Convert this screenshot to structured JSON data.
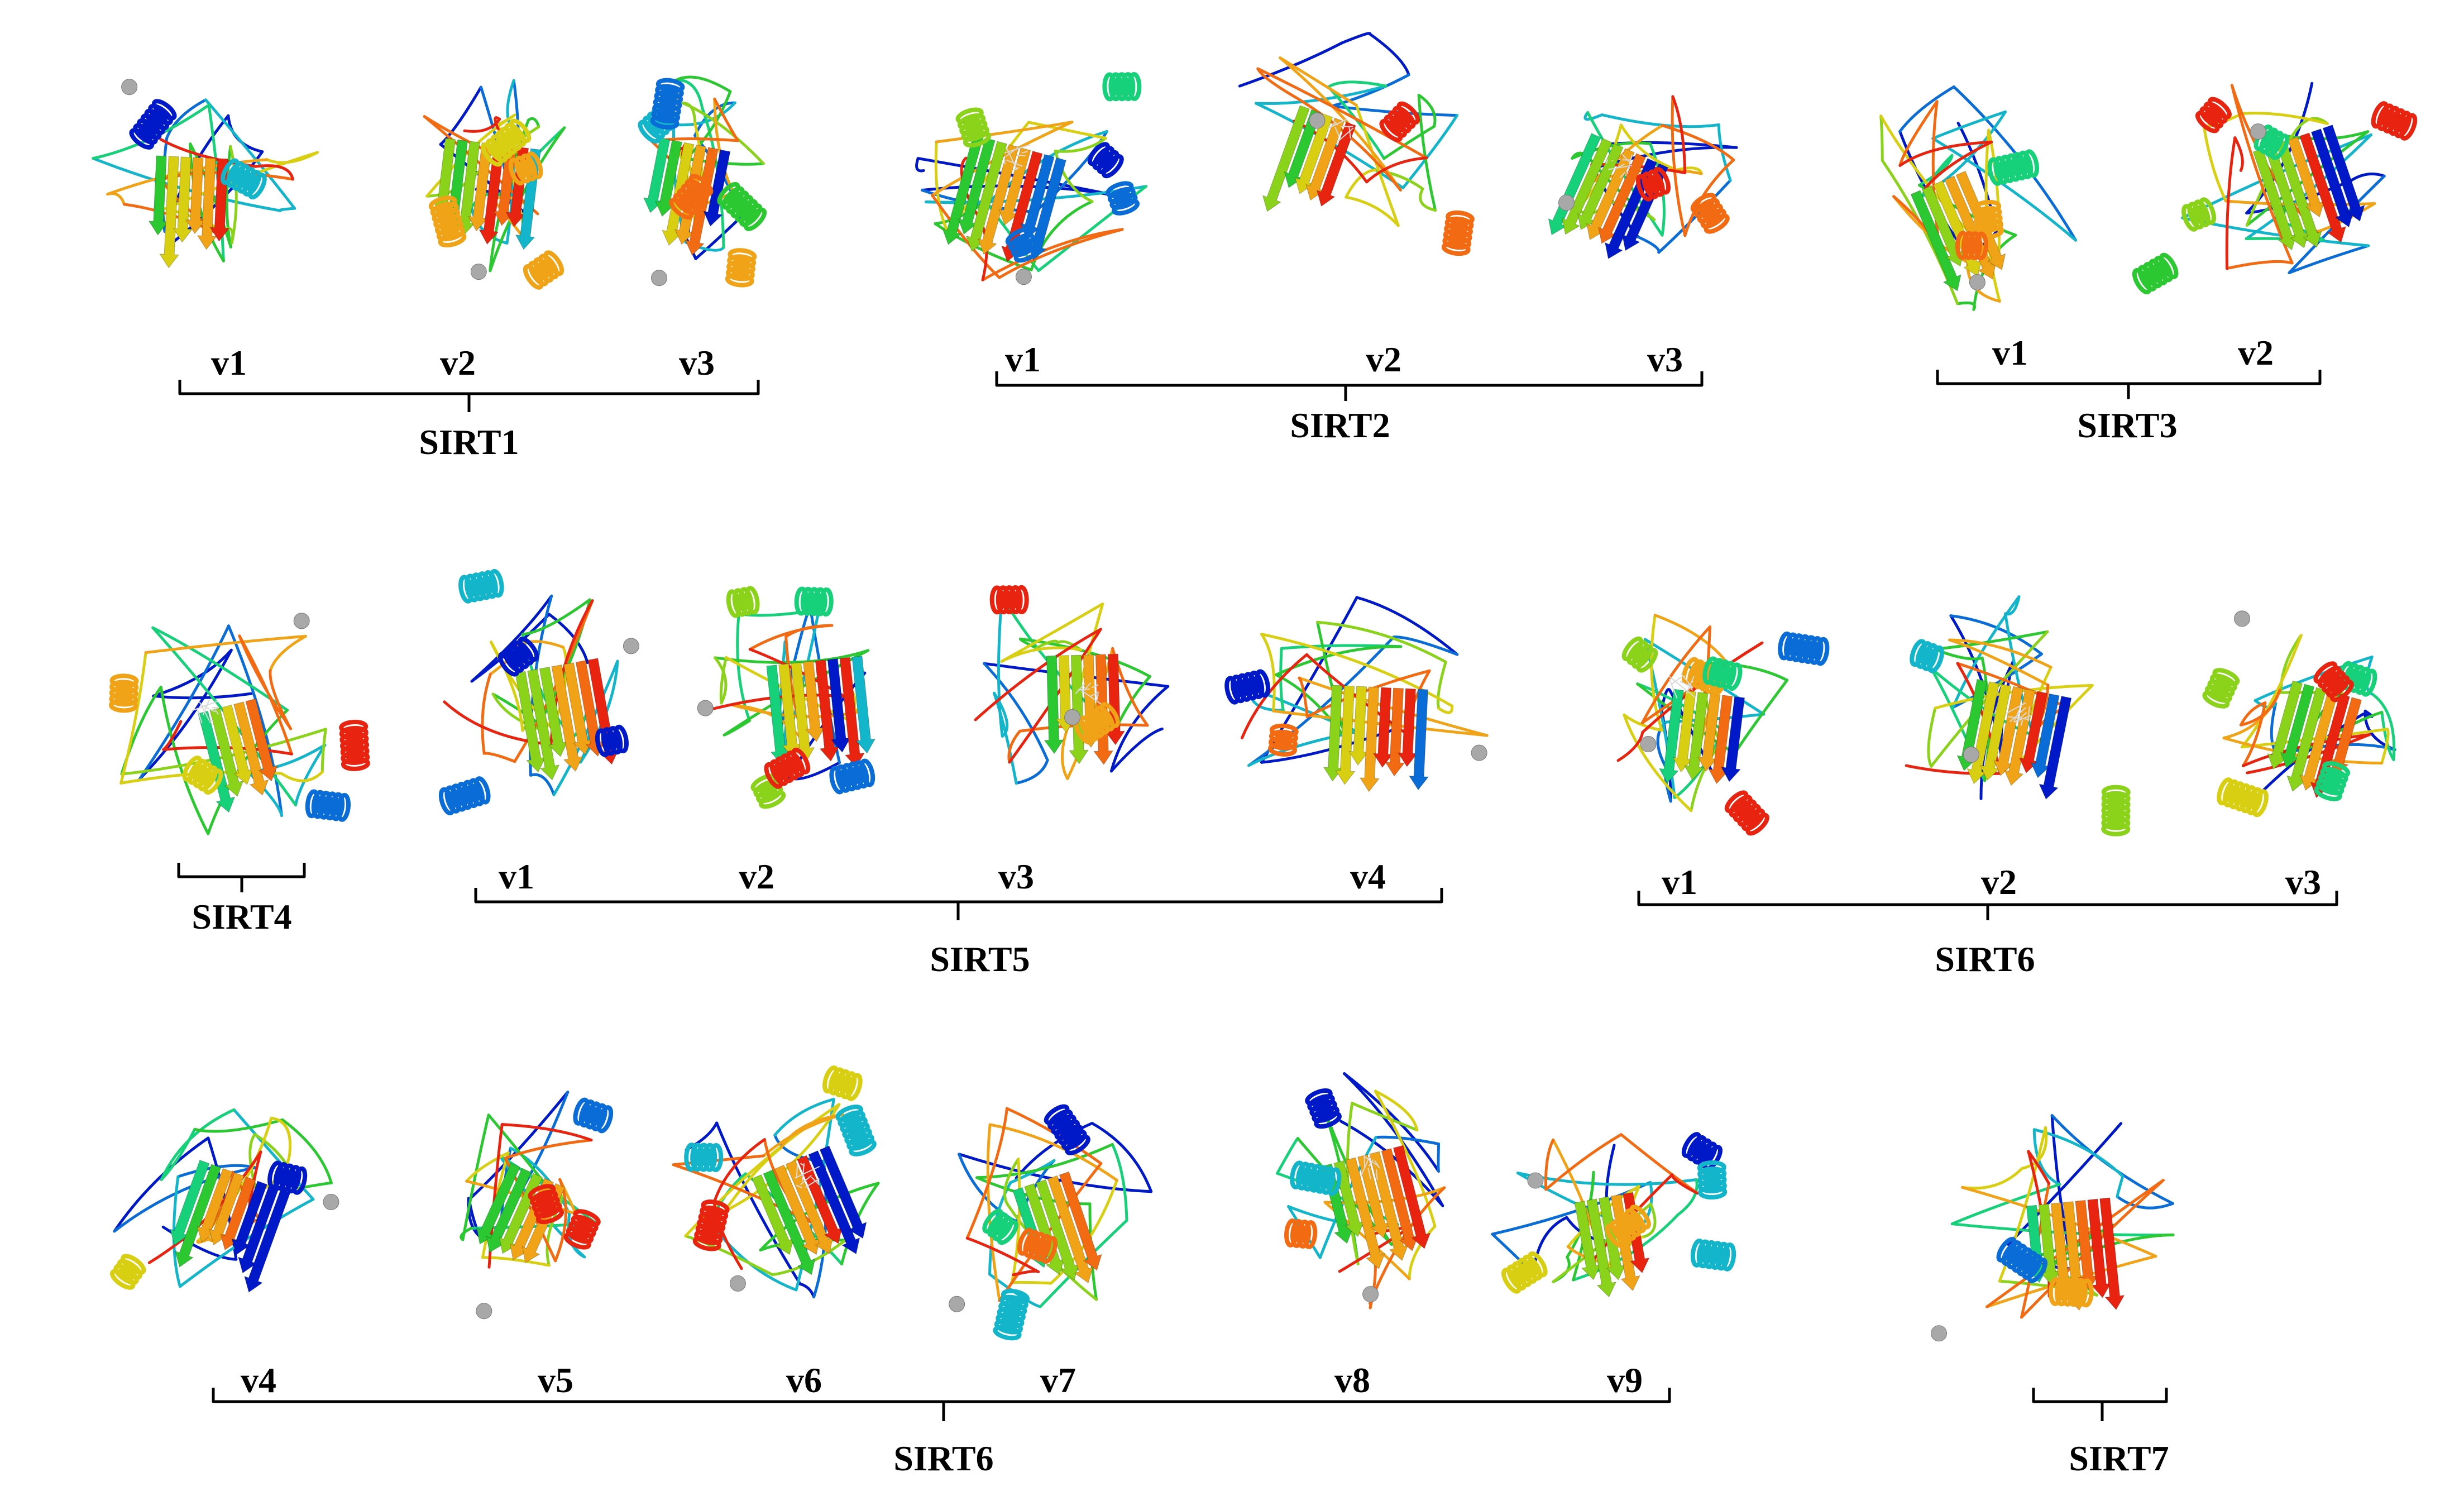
{
  "figure": {
    "rows": [
      {
        "groups": [
          {
            "id": "sirt1",
            "name": "SIRT1",
            "variants": [
              "v1",
              "v2",
              "v3"
            ]
          },
          {
            "id": "sirt2",
            "name": "SIRT2",
            "variants": [
              "v1",
              "v2",
              "v3"
            ]
          },
          {
            "id": "sirt3",
            "name": "SIRT3",
            "variants": [
              "v1",
              "v2"
            ]
          }
        ]
      },
      {
        "groups": [
          {
            "id": "sirt4",
            "name": "SIRT4",
            "variants": []
          },
          {
            "id": "sirt5",
            "name": "SIRT5",
            "variants": [
              "v1",
              "v2",
              "v3",
              "v4"
            ]
          },
          {
            "id": "sirt6a",
            "name": "SIRT6",
            "variants": [
              "v1",
              "v2",
              "v3"
            ]
          }
        ]
      },
      {
        "groups": [
          {
            "id": "sirt6b",
            "name": "SIRT6",
            "variants": [
              "v4",
              "v5",
              "v6",
              "v7",
              "v8",
              "v9"
            ]
          },
          {
            "id": "sirt7",
            "name": "SIRT7",
            "variants": []
          }
        ]
      }
    ],
    "colors": {
      "rainbow": [
        "#0019c8",
        "#0a6cd6",
        "#12b5c9",
        "#17d07a",
        "#2cc832",
        "#8bd21a",
        "#d8cf12",
        "#f0a316",
        "#f26a12",
        "#e82310"
      ],
      "zinc_atom": "#a8a8a8",
      "ligand": "#d9d9d9",
      "text": "#000000",
      "bracket": "#000000"
    }
  }
}
